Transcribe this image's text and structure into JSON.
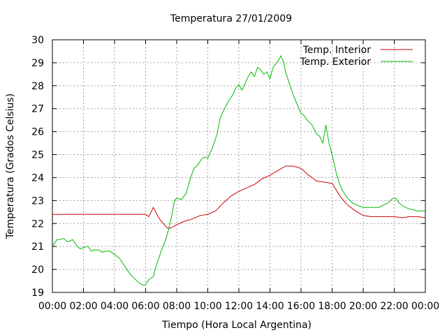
{
  "chart_data": {
    "type": "line",
    "title": "Temperatura 27/01/2009",
    "xlabel": "Tiempo (Hora Local Argentina)",
    "ylabel": "Temperatura (Grados Celsius)",
    "xlim": [
      0,
      24
    ],
    "ylim": [
      19,
      30
    ],
    "x_ticks": [
      "00:00",
      "02:00",
      "04:00",
      "06:00",
      "08:00",
      "10:00",
      "12:00",
      "14:00",
      "16:00",
      "18:00",
      "20:00",
      "22:00",
      "00:00"
    ],
    "y_ticks": [
      19,
      20,
      21,
      22,
      23,
      24,
      25,
      26,
      27,
      28,
      29,
      30
    ],
    "grid": true,
    "legend_position": "top-right",
    "series": [
      {
        "name": "Temp. Interior",
        "color": "#cc0000",
        "x": [
          0,
          6,
          6.2,
          6.35,
          6.5,
          6.65,
          6.8,
          7.0,
          7.2,
          7.4,
          7.6,
          8.0,
          8.5,
          9.0,
          9.5,
          10.0,
          10.5,
          11.0,
          11.5,
          12.0,
          12.5,
          13.0,
          13.5,
          14.0,
          14.5,
          15.0,
          15.5,
          16.0,
          16.5,
          17.0,
          17.5,
          18.0,
          18.5,
          19.0,
          19.5,
          20.0,
          20.5,
          21.0,
          21.5,
          22.0,
          22.5,
          23.0,
          23.5,
          24.0
        ],
        "y": [
          22.4,
          22.4,
          22.3,
          22.5,
          22.7,
          22.5,
          22.3,
          22.1,
          21.95,
          21.8,
          21.8,
          21.95,
          22.1,
          22.2,
          22.35,
          22.4,
          22.55,
          22.9,
          23.2,
          23.4,
          23.55,
          23.7,
          23.95,
          24.1,
          24.3,
          24.5,
          24.5,
          24.4,
          24.1,
          23.85,
          23.8,
          23.75,
          23.2,
          22.8,
          22.55,
          22.35,
          22.3,
          22.3,
          22.3,
          22.3,
          22.25,
          22.3,
          22.3,
          22.25
        ]
      },
      {
        "name": "Temp. Exterior",
        "color": "#00bb00",
        "x": [
          0,
          0.3,
          0.5,
          0.7,
          1.0,
          1.3,
          1.6,
          1.8,
          2.0,
          2.3,
          2.5,
          2.7,
          3.0,
          3.2,
          3.5,
          3.7,
          4.0,
          4.3,
          4.7,
          5.0,
          5.3,
          5.6,
          5.9,
          6.0,
          6.2,
          6.5,
          6.7,
          7.0,
          7.3,
          7.5,
          7.7,
          7.85,
          8.0,
          8.3,
          8.6,
          8.9,
          9.1,
          9.3,
          9.6,
          9.8,
          10.0,
          10.3,
          10.6,
          10.8,
          11.0,
          11.3,
          11.6,
          11.8,
          12.0,
          12.2,
          12.4,
          12.6,
          12.8,
          13.0,
          13.2,
          13.4,
          13.6,
          13.8,
          14.0,
          14.2,
          14.5,
          14.7,
          14.9,
          15.0,
          15.2,
          15.5,
          15.8,
          16.0,
          16.2,
          16.4,
          16.7,
          17.0,
          17.2,
          17.4,
          17.6,
          17.8,
          18.0,
          18.3,
          18.6,
          19.0,
          19.3,
          19.6,
          20.0,
          20.3,
          20.7,
          21.0,
          21.3,
          21.6,
          21.9,
          22.1,
          22.3,
          22.6,
          22.9,
          23.2,
          23.5,
          23.8,
          24.0
        ],
        "y": [
          21.0,
          21.3,
          21.3,
          21.35,
          21.2,
          21.3,
          21.0,
          20.9,
          20.95,
          21.0,
          20.8,
          20.85,
          20.85,
          20.75,
          20.8,
          20.8,
          20.65,
          20.5,
          20.1,
          19.8,
          19.6,
          19.4,
          19.3,
          19.35,
          19.55,
          19.7,
          20.2,
          20.8,
          21.3,
          21.8,
          22.4,
          23.0,
          23.1,
          23.05,
          23.3,
          24.0,
          24.4,
          24.5,
          24.8,
          24.9,
          24.85,
          25.3,
          25.9,
          26.6,
          26.9,
          27.3,
          27.6,
          27.9,
          28.05,
          27.8,
          28.1,
          28.4,
          28.6,
          28.4,
          28.8,
          28.7,
          28.5,
          28.6,
          28.3,
          28.8,
          29.05,
          29.3,
          29.0,
          28.6,
          28.2,
          27.6,
          27.1,
          26.8,
          26.7,
          26.5,
          26.3,
          25.9,
          25.8,
          25.5,
          26.3,
          25.5,
          25.0,
          24.1,
          23.5,
          23.1,
          22.9,
          22.8,
          22.7,
          22.7,
          22.7,
          22.7,
          22.8,
          22.9,
          23.1,
          23.1,
          22.9,
          22.75,
          22.65,
          22.6,
          22.55,
          22.55,
          22.55
        ]
      }
    ]
  }
}
